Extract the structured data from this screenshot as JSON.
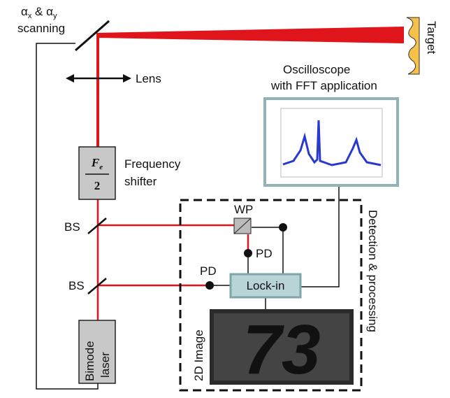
{
  "scanning": {
    "alpha1": "α",
    "sub1": "x",
    "amp": " & α",
    "sub2": "y",
    "line2": "scanning"
  },
  "target": "Target",
  "lens": "Lens",
  "oscilloscope": {
    "line1": "Oscilloscope",
    "line2": "with FFT application"
  },
  "frequency_shifter": {
    "symbol": "F",
    "sub": "e",
    "denominator": "2",
    "line1": "Frequency",
    "line2": "shifter"
  },
  "beam_splitters": [
    "BS",
    "BS"
  ],
  "waveplate": "WP",
  "photodiodes": [
    "PD",
    "PD"
  ],
  "lock_in": "Lock-in",
  "detection": "Detection & processing",
  "image_label": "2D Image",
  "image_content": "73",
  "laser": {
    "line1": "Bimode",
    "line2": "laser"
  }
}
